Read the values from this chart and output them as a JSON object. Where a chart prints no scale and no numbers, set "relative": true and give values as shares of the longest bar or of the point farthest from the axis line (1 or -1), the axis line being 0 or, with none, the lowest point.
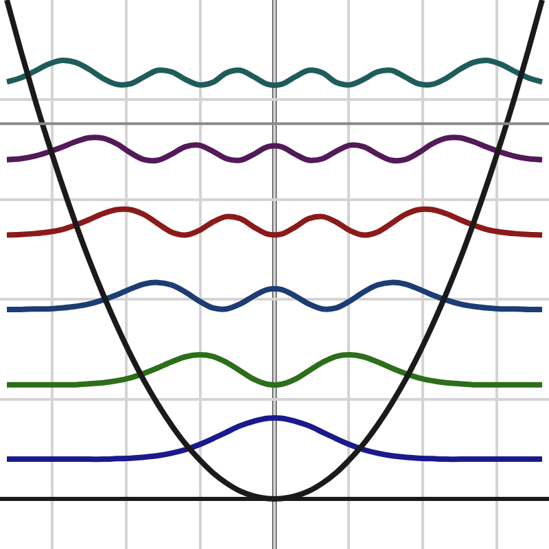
{
  "chart_data": {
    "type": "line",
    "relative": true,
    "grid": true,
    "categories": [
      null,
      null,
      null,
      null,
      null,
      null,
      null,
      null,
      null,
      null,
      null,
      null,
      null,
      null,
      null,
      null,
      null,
      null,
      null,
      null,
      null,
      null,
      null,
      null,
      null,
      null,
      null,
      null,
      null,
      null,
      null,
      null,
      null,
      null,
      null,
      null,
      null,
      null,
      null,
      null
    ],
    "series": [
      {
        "color": "#1a1a8c",
        "values": [
          0.08,
          0.08,
          0.08,
          0.08,
          0.08,
          0.08,
          0.08,
          0.08,
          0.081,
          0.082,
          0.084,
          0.087,
          0.092,
          0.099,
          0.109,
          0.121,
          0.134,
          0.147,
          0.156,
          0.162,
          0.162,
          0.156,
          0.147,
          0.134,
          0.121,
          0.109,
          0.099,
          0.092,
          0.087,
          0.084,
          0.082,
          0.081,
          0.08,
          0.08,
          0.08,
          0.08,
          0.08,
          0.08,
          0.08,
          0.08
        ]
      },
      {
        "color": "#2d6e1a",
        "values": [
          0.229,
          0.229,
          0.229,
          0.229,
          0.229,
          0.229,
          0.231,
          0.233,
          0.237,
          0.243,
          0.252,
          0.263,
          0.275,
          0.285,
          0.289,
          0.286,
          0.274,
          0.257,
          0.24,
          0.23,
          0.23,
          0.24,
          0.257,
          0.274,
          0.286,
          0.289,
          0.285,
          0.275,
          0.263,
          0.252,
          0.243,
          0.237,
          0.233,
          0.231,
          0.229,
          0.229,
          0.229,
          0.229,
          0.229,
          0.229
        ]
      },
      {
        "color": "#1c3c74",
        "values": [
          0.38,
          0.38,
          0.381,
          0.381,
          0.383,
          0.386,
          0.391,
          0.399,
          0.409,
          0.421,
          0.431,
          0.434,
          0.429,
          0.415,
          0.397,
          0.383,
          0.381,
          0.391,
          0.407,
          0.42,
          0.42,
          0.407,
          0.391,
          0.381,
          0.383,
          0.397,
          0.415,
          0.429,
          0.434,
          0.431,
          0.421,
          0.409,
          0.399,
          0.391,
          0.386,
          0.383,
          0.381,
          0.381,
          0.38,
          0.38
        ]
      },
      {
        "color": "#8b1a1a",
        "values": [
          0.529,
          0.53,
          0.532,
          0.535,
          0.54,
          0.549,
          0.56,
          0.572,
          0.58,
          0.58,
          0.57,
          0.552,
          0.535,
          0.529,
          0.538,
          0.555,
          0.566,
          0.562,
          0.545,
          0.531,
          0.531,
          0.545,
          0.562,
          0.566,
          0.555,
          0.538,
          0.529,
          0.535,
          0.552,
          0.57,
          0.58,
          0.58,
          0.572,
          0.56,
          0.549,
          0.54,
          0.535,
          0.532,
          0.53,
          0.529
        ]
      },
      {
        "color": "#521a58",
        "values": [
          0.68,
          0.682,
          0.687,
          0.695,
          0.705,
          0.716,
          0.724,
          0.723,
          0.712,
          0.694,
          0.68,
          0.679,
          0.691,
          0.706,
          0.709,
          0.697,
          0.682,
          0.679,
          0.691,
          0.706,
          0.706,
          0.691,
          0.679,
          0.682,
          0.697,
          0.709,
          0.706,
          0.691,
          0.679,
          0.68,
          0.694,
          0.712,
          0.723,
          0.724,
          0.716,
          0.705,
          0.695,
          0.687,
          0.682,
          0.68
        ]
      },
      {
        "color": "#1e5c5a",
        "values": [
          0.836,
          0.844,
          0.857,
          0.871,
          0.879,
          0.875,
          0.861,
          0.843,
          0.831,
          0.832,
          0.846,
          0.859,
          0.856,
          0.841,
          0.83,
          0.835,
          0.854,
          0.859,
          0.846,
          0.831,
          0.831,
          0.846,
          0.859,
          0.854,
          0.835,
          0.83,
          0.841,
          0.856,
          0.859,
          0.846,
          0.832,
          0.831,
          0.843,
          0.861,
          0.875,
          0.879,
          0.871,
          0.857,
          0.844,
          0.836
        ]
      },
      {
        "color": "#1a1a1a",
        "values": [
          1,
          0.9,
          0.805,
          0.716,
          0.632,
          0.553,
          0.479,
          0.411,
          0.348,
          0.29,
          0.237,
          0.19,
          0.148,
          0.111,
          0.08,
          0.053,
          0.032,
          0.016,
          0.006,
          0.001,
          0.001,
          0.006,
          0.016,
          0.032,
          0.053,
          0.08,
          0.111,
          0.148,
          0.19,
          0.237,
          0.29,
          0.348,
          0.411,
          0.479,
          0.553,
          0.632,
          0.716,
          0.805,
          0.9,
          1
        ]
      }
    ],
    "ref_lines": [
      {
        "axis": "y",
        "value": 0.752,
        "color": "#8a8a8a"
      }
    ]
  }
}
